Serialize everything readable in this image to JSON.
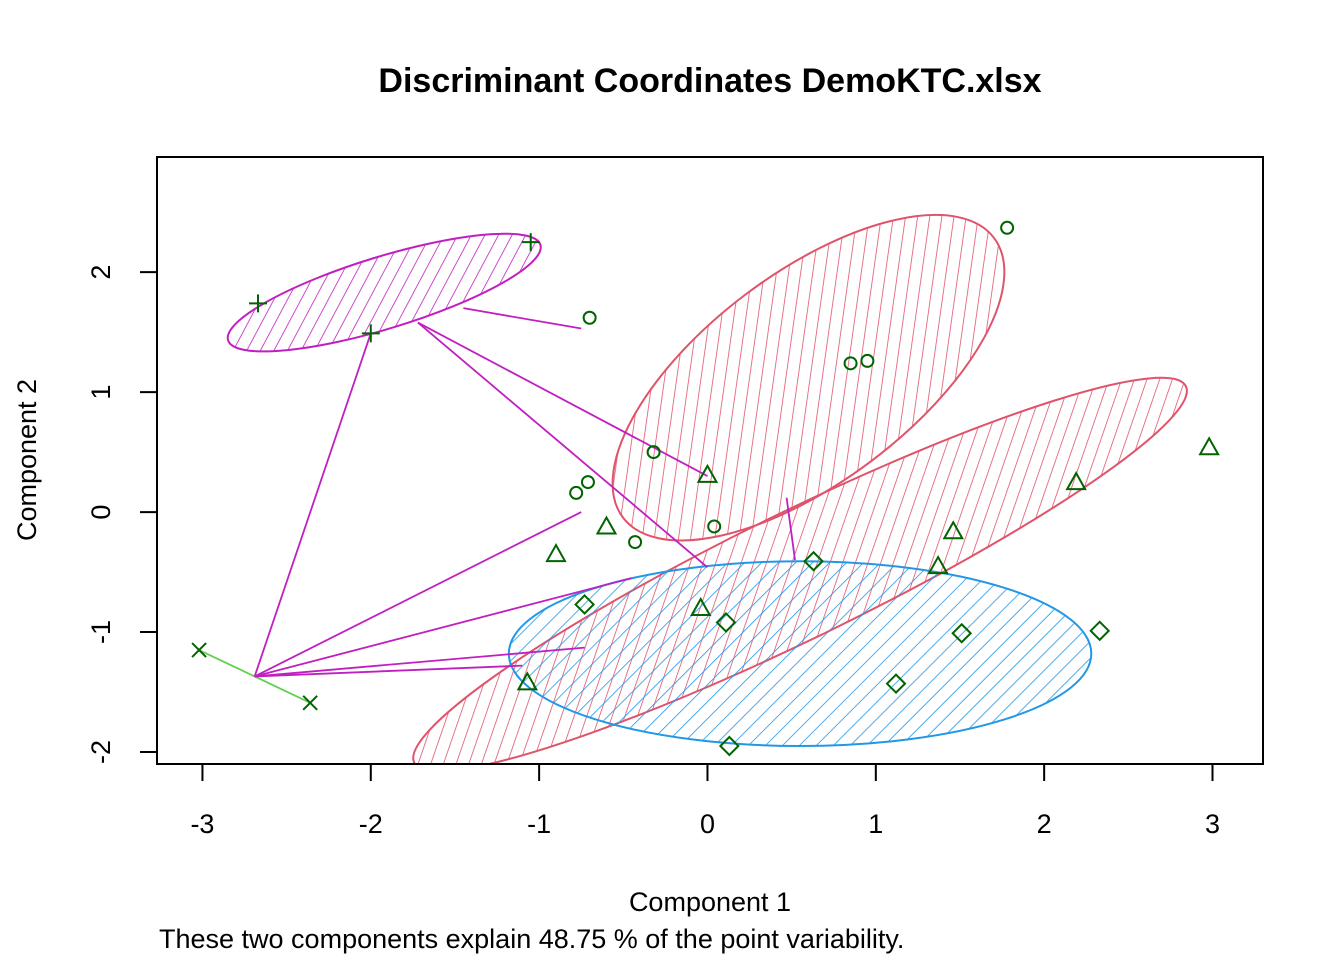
{
  "chart_data": {
    "type": "scatter",
    "title": "Discriminant Coordinates DemoKTC.xlsx",
    "xlabel": "Component 1",
    "ylabel": "Component 2",
    "subtitle": "These two components explain 48.75 % of the point variability.",
    "xlim": [
      -3.27,
      3.3
    ],
    "ylim": [
      -2.1,
      2.96
    ],
    "x_ticks": [
      -3,
      -2,
      -1,
      0,
      1,
      2,
      3
    ],
    "y_ticks": [
      -2,
      -1,
      0,
      1,
      2
    ],
    "grid": false,
    "colors": {
      "point": "#006400",
      "ellipse_red": "#DF536B",
      "ellipse_purple": "#C020C0",
      "ellipse_blue": "#2297E6",
      "line_purple": "#C020C0",
      "line_green": "#61D04F"
    },
    "clusters": [
      {
        "marker": "circle",
        "ellipse_color": "ellipse_red",
        "points": [
          [
            -0.7,
            1.62
          ],
          [
            0.85,
            1.24
          ],
          [
            0.95,
            1.26
          ],
          [
            1.78,
            2.37
          ],
          [
            -0.32,
            0.5
          ],
          [
            -0.78,
            0.16
          ],
          [
            -0.71,
            0.25
          ],
          [
            0.04,
            -0.12
          ],
          [
            -0.43,
            -0.25
          ]
        ],
        "ellipse": {
          "cx": 0.6,
          "cy": 1.12,
          "rx": 1.38,
          "ry": 0.87,
          "angle": 37
        }
      },
      {
        "marker": "triangle",
        "ellipse_color": "ellipse_red",
        "points": [
          [
            0,
            0.31
          ],
          [
            2.98,
            0.54
          ],
          [
            2.19,
            0.25
          ],
          [
            1.46,
            -0.16
          ],
          [
            1.37,
            -0.45
          ],
          [
            -0.6,
            -0.12
          ],
          [
            -0.9,
            -0.35
          ],
          [
            -0.04,
            -0.8
          ],
          [
            -1.07,
            -1.42
          ]
        ],
        "ellipse": {
          "cx": 0.55,
          "cy": -0.52,
          "rx": 2.55,
          "ry": 0.53,
          "angle": 26
        }
      },
      {
        "marker": "diamond",
        "ellipse_color": "ellipse_blue",
        "points": [
          [
            0.63,
            -0.41
          ],
          [
            -0.73,
            -0.77
          ],
          [
            0.11,
            -0.92
          ],
          [
            1.51,
            -1.01
          ],
          [
            2.33,
            -0.99
          ],
          [
            1.12,
            -1.43
          ],
          [
            0.13,
            -1.95
          ]
        ],
        "ellipse": {
          "cx": 0.55,
          "cy": -1.18,
          "rx": 1.73,
          "ry": 0.77,
          "angle": 0
        }
      },
      {
        "marker": "plus",
        "ellipse_color": "ellipse_purple",
        "points": [
          [
            -2.67,
            1.74
          ],
          [
            -2.0,
            1.49
          ],
          [
            -1.05,
            2.25
          ]
        ],
        "ellipse": {
          "cx": -1.92,
          "cy": 1.83,
          "rx": 0.97,
          "ry": 0.3,
          "angle": 17
        }
      },
      {
        "marker": "cross",
        "ellipse_color": null,
        "points": [
          [
            -3.02,
            -1.15
          ],
          [
            -2.36,
            -1.59
          ]
        ],
        "ellipse": null
      }
    ],
    "connectors": [
      {
        "color": "line_green",
        "from": [
          -2.69,
          -1.37
        ],
        "to": [
          -3.02,
          -1.15
        ]
      },
      {
        "color": "line_green",
        "from": [
          -2.69,
          -1.37
        ],
        "to": [
          -2.36,
          -1.59
        ]
      },
      {
        "color": "line_purple",
        "from": [
          -2.69,
          -1.37
        ],
        "to": [
          -2.0,
          1.49
        ]
      },
      {
        "color": "line_purple",
        "from": [
          -2.69,
          -1.37
        ],
        "to": [
          -0.73,
          -1.13
        ]
      },
      {
        "color": "line_purple",
        "from": [
          -2.69,
          -1.37
        ],
        "to": [
          -1.1,
          -1.28
        ]
      },
      {
        "color": "line_purple",
        "from": [
          -2.69,
          -1.37
        ],
        "to": [
          -0.75,
          0.0
        ]
      },
      {
        "color": "line_purple",
        "from": [
          -2.69,
          -1.37
        ],
        "to": [
          -0.45,
          -0.55
        ]
      },
      {
        "color": "line_purple",
        "from": [
          -1.72,
          1.58
        ],
        "to": [
          0.0,
          0.3
        ]
      },
      {
        "color": "line_purple",
        "from": [
          -1.72,
          1.58
        ],
        "to": [
          0.0,
          -0.46
        ]
      },
      {
        "color": "line_purple",
        "from": [
          -1.45,
          1.7
        ],
        "to": [
          -0.75,
          1.53
        ]
      },
      {
        "color": "line_purple",
        "from": [
          0.47,
          0.12
        ],
        "to": [
          0.52,
          -0.4
        ]
      }
    ]
  }
}
